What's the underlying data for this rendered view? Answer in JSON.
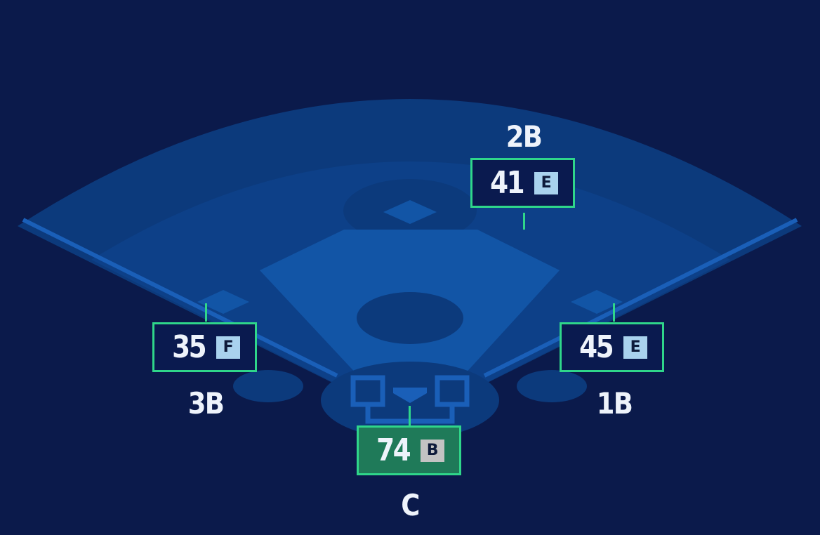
{
  "colors": {
    "background": "#0b1a4b",
    "outfield": "#0c3a7c",
    "infield_grass": "#0d4088",
    "infield_dirt": "#1255a6",
    "highlight_border": "#2fd68a",
    "highlight_fill": "#1f7a59",
    "grade_badge": "#a9d2ee",
    "grade_badge_alt": "#c3c3c3"
  },
  "positions": {
    "second_base": {
      "label": "2B",
      "score": "41",
      "grade": "E"
    },
    "third_base": {
      "label": "3B",
      "score": "35",
      "grade": "F"
    },
    "first_base": {
      "label": "1B",
      "score": "45",
      "grade": "E"
    },
    "catcher": {
      "label": "C",
      "score": "74",
      "grade": "B",
      "highlighted": true
    }
  }
}
